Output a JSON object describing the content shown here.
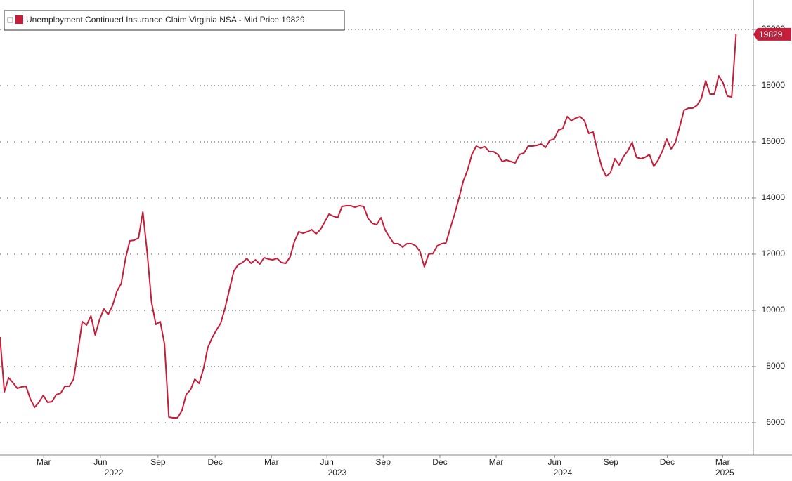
{
  "chart_data": {
    "type": "line",
    "series": [
      {
        "name": "Unemployment Continued Insurance Claim Virginia NSA - Mid Price 19829",
        "color": "#c41e3a",
        "values": [
          9050,
          7100,
          7600,
          7425,
          7225,
          7275,
          7300,
          6850,
          6550,
          6725,
          6975,
          6725,
          6750,
          7000,
          7050,
          7300,
          7300,
          7550,
          8550,
          9600,
          9475,
          9800,
          9125,
          9675,
          10050,
          9850,
          10175,
          10675,
          10950,
          11850,
          12475,
          12500,
          12575,
          13500,
          12050,
          10300,
          9500,
          9600,
          8800,
          6200,
          6175,
          6175,
          6425,
          7000,
          7175,
          7550,
          7400,
          7925,
          8675,
          9025,
          9300,
          9550,
          10100,
          10750,
          11400,
          11625,
          11700,
          11850,
          11675,
          11800,
          11650,
          11875,
          11825,
          11800,
          11850,
          11700,
          11675,
          11900,
          12450,
          12800,
          12750,
          12800,
          12875,
          12725,
          12875,
          13150,
          13425,
          13350,
          13300,
          13700,
          13725,
          13725,
          13675,
          13725,
          13700,
          13275,
          13100,
          13050,
          13300,
          12850,
          12600,
          12375,
          12375,
          12250,
          12375,
          12375,
          12300,
          12100,
          11550,
          12000,
          12025,
          12300,
          12375,
          12400,
          12925,
          13425,
          14000,
          14600,
          15000,
          15550,
          15850,
          15775,
          15825,
          15650,
          15650,
          15550,
          15300,
          15350,
          15300,
          15250,
          15550,
          15600,
          15850,
          15850,
          15875,
          15925,
          15800,
          16050,
          16100,
          16425,
          16475,
          16900,
          16750,
          16850,
          16900,
          16750,
          16300,
          16350,
          15675,
          15100,
          14775,
          14900,
          15400,
          15175,
          15475,
          15675,
          15975,
          15450,
          15400,
          15450,
          15550,
          15125,
          15350,
          15675,
          16100,
          15750,
          15975,
          16550,
          17125,
          17200,
          17200,
          17300,
          17550,
          18175,
          17700,
          17700,
          18350,
          18100,
          17625,
          17600,
          19829
        ]
      }
    ],
    "xlim": [
      0,
      174
    ],
    "xticks": [
      {
        "value": 10.1,
        "label": "Mar"
      },
      {
        "value": 23.2,
        "label": "Jun"
      },
      {
        "value": 36.5,
        "label": "Sep"
      },
      {
        "value": 49.7,
        "label": "Dec"
      },
      {
        "value": 62.7,
        "label": "Mar"
      },
      {
        "value": 75.5,
        "label": "Jun"
      },
      {
        "value": 88.5,
        "label": "Sep"
      },
      {
        "value": 101.6,
        "label": "Dec"
      },
      {
        "value": 114.6,
        "label": "Mar"
      },
      {
        "value": 128.1,
        "label": "Jun"
      },
      {
        "value": 141.1,
        "label": "Sep"
      },
      {
        "value": 154.1,
        "label": "Dec"
      },
      {
        "value": 166.9,
        "label": "Mar"
      }
    ],
    "year_ticks": [
      {
        "value": 26.3,
        "label": "2022"
      },
      {
        "value": 77.9,
        "label": "2023"
      },
      {
        "value": 130,
        "label": "2024"
      },
      {
        "value": 167.4,
        "label": "2025"
      }
    ],
    "ylim": [
      4850,
      21050
    ],
    "yticks": [
      6000,
      8000,
      10000,
      12000,
      14000,
      16000,
      18000,
      20000
    ],
    "grid": true
  }
}
